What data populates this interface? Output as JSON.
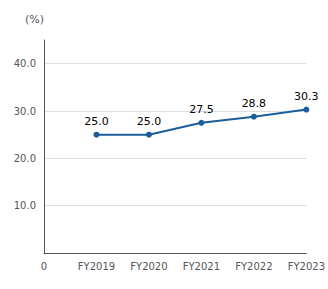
{
  "chart_data": {
    "type": "line",
    "categories": [
      "0",
      "FY2019",
      "FY2020",
      "FY2021",
      "FY2022",
      "FY2023"
    ],
    "values": [
      null,
      25.0,
      25.0,
      27.5,
      28.8,
      30.3
    ],
    "value_labels": [
      null,
      "25.0",
      "25.0",
      "27.5",
      "28.8",
      "30.3"
    ],
    "color": "#1b5e9b",
    "ylabel": "(%)",
    "ylim": [
      0,
      45
    ],
    "yticks": [
      {
        "value": 10,
        "label": "10.0"
      },
      {
        "value": 20,
        "label": "20.0"
      },
      {
        "value": 30,
        "label": "30.0"
      },
      {
        "value": 40,
        "label": "40.0"
      }
    ],
    "grid": true,
    "data_labels": true,
    "marker": "circle"
  }
}
